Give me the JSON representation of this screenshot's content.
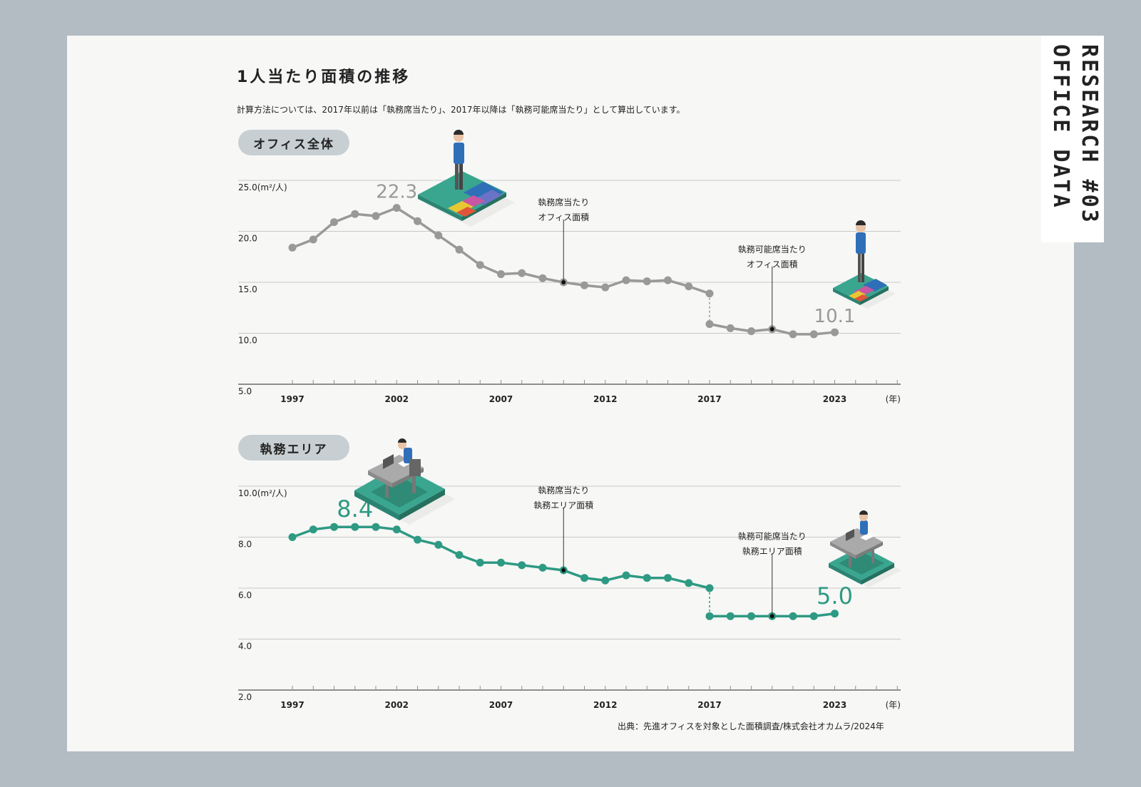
{
  "header": {
    "title": "1人当たり面積の推移",
    "note": "計算方法については、2017年以前は「執務席当たり」、2017年以降は「執務可能席当たり」として算出しています。",
    "side_line1": "RESEARCH #03",
    "side_line2": "OFFICE DATA"
  },
  "footer": {
    "source": "出典：先進オフィスを対象とした面積調査/株式会社オカムラ/2024年"
  },
  "chart_data": [
    {
      "type": "line",
      "section_label": "オフィス全体",
      "unit_label": "(m²/人)",
      "color": "#999999",
      "y_ticks": [
        "25.0",
        "20.0",
        "15.0",
        "10.0",
        "5.0"
      ],
      "ylim": [
        5,
        25
      ],
      "x_ticks": [
        "1997",
        "2002",
        "2007",
        "2012",
        "2017",
        "2023"
      ],
      "x_unit": "(年)",
      "series": [
        {
          "x": [
            1997,
            1998,
            1999,
            2000,
            2001,
            2002,
            2003,
            2004,
            2005,
            2006,
            2007,
            2008,
            2009,
            2010,
            2011,
            2012,
            2013,
            2014,
            2015,
            2016,
            2017
          ],
          "values": [
            18.4,
            19.2,
            20.9,
            21.7,
            21.5,
            22.3,
            21.0,
            19.6,
            18.2,
            16.7,
            15.8,
            15.9,
            15.4,
            15.0,
            14.7,
            14.5,
            15.2,
            15.1,
            15.2,
            14.6,
            13.9
          ]
        },
        {
          "x": [
            2017,
            2018,
            2019,
            2020,
            2021,
            2022,
            2023
          ],
          "values": [
            10.9,
            10.5,
            10.2,
            10.4,
            9.9,
            9.9,
            10.1
          ]
        }
      ],
      "highlights": [
        {
          "x": 2002,
          "label": "22.3"
        },
        {
          "x": 2023,
          "label": "10.1"
        }
      ],
      "annotations": [
        {
          "lines": [
            "執務席当たり",
            "オフィス面積"
          ],
          "x": 2010,
          "y": 15.0
        },
        {
          "lines": [
            "執務可能席当たり",
            "オフィス面積"
          ],
          "x": 2020,
          "y": 10.4
        }
      ]
    },
    {
      "type": "line",
      "section_label": "執務エリア",
      "unit_label": "(m²/人)",
      "color": "#2e9a83",
      "y_ticks": [
        "10.0",
        "8.0",
        "6.0",
        "4.0",
        "2.0"
      ],
      "ylim": [
        2,
        10
      ],
      "x_ticks": [
        "1997",
        "2002",
        "2007",
        "2012",
        "2017",
        "2023"
      ],
      "x_unit": "(年)",
      "series": [
        {
          "x": [
            1997,
            1998,
            1999,
            2000,
            2001,
            2002,
            2003,
            2004,
            2005,
            2006,
            2007,
            2008,
            2009,
            2010,
            2011,
            2012,
            2013,
            2014,
            2015,
            2016,
            2017
          ],
          "values": [
            8.0,
            8.3,
            8.4,
            8.4,
            8.4,
            8.3,
            7.9,
            7.7,
            7.3,
            7.0,
            7.0,
            6.9,
            6.8,
            6.7,
            6.4,
            6.3,
            6.5,
            6.4,
            6.4,
            6.2,
            6.0
          ]
        },
        {
          "x": [
            2017,
            2018,
            2019,
            2020,
            2021,
            2022,
            2023
          ],
          "values": [
            4.9,
            4.9,
            4.9,
            4.9,
            4.9,
            4.9,
            5.0
          ]
        }
      ],
      "highlights": [
        {
          "x": 2000,
          "label": "8.4"
        },
        {
          "x": 2023,
          "label": "5.0"
        }
      ],
      "annotations": [
        {
          "lines": [
            "執務席当たり",
            "執務エリア面積"
          ],
          "x": 2010,
          "y": 6.7
        },
        {
          "lines": [
            "執務可能席当たり",
            "執務エリア面積"
          ],
          "x": 2020,
          "y": 4.9
        }
      ]
    }
  ]
}
